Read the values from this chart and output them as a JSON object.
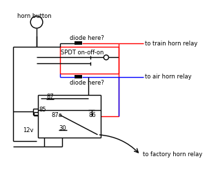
{
  "bg_color": "#ffffff",
  "black": "#000000",
  "red": "#ff0000",
  "blue": "#0000ff",
  "labels": {
    "horn_button": "horn button",
    "diode_top": "diode here?",
    "spdt": "SPDT on-off-on",
    "diode_bot": "diode here?",
    "to_train": "to train horn relay",
    "to_air": "to air horn relay",
    "to_factory": "to factory horn relay",
    "l87": "87",
    "l85": "85",
    "l87a": "87a",
    "l86": "86",
    "l30": "30",
    "l12v": "12v"
  },
  "font_size": 6.0
}
